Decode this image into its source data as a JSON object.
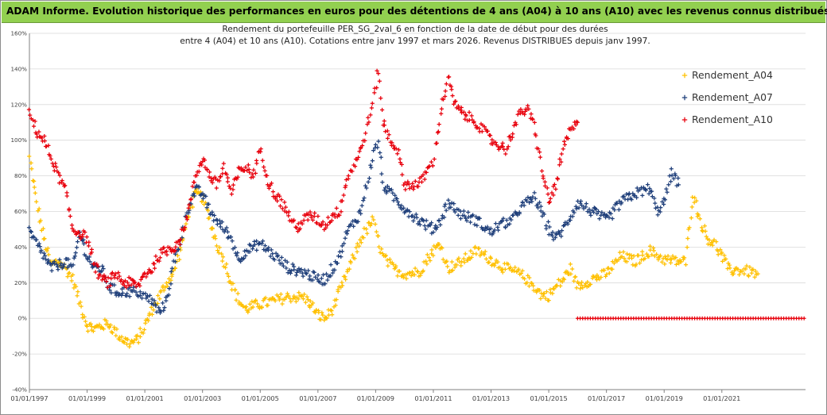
{
  "banner": {
    "title": "ADAM Informe. Evolution historique des performances en euros pour des détentions de 4 ans (A04) à 10 ans (A10) avec les revenus connus distribués"
  },
  "colors": {
    "banner_bg": "#92d050",
    "A04": "#ffc000",
    "A07": "#1f3f7a",
    "A10": "#e8000c",
    "axis": "#808080"
  },
  "chart_data": {
    "type": "scatter",
    "title_lines": [
      "Rendement du portefeuille PER_SG_2val_6 en fonction de la date de début pour des durées",
      "entre 4 (A04) et 10 ans (A10). Cotations entre janv 1997 et mars 2026. Revenus DISTRIBUES depuis janv 1997."
    ],
    "xlabel": "",
    "ylabel": "",
    "x_range": [
      1997.0,
      2023.9
    ],
    "ylim": [
      -40,
      160
    ],
    "y_ticks": [
      -40,
      -20,
      0,
      20,
      40,
      60,
      80,
      100,
      120,
      140,
      160
    ],
    "y_tick_labels": [
      "-40%",
      "-20%",
      "0%",
      "20%",
      "40%",
      "60%",
      "80%",
      "100%",
      "120%",
      "140%",
      "160%"
    ],
    "x_ticks": [
      1997,
      1999,
      2001,
      2003,
      2005,
      2007,
      2009,
      2011,
      2013,
      2015,
      2017,
      2019,
      2021
    ],
    "x_tick_labels": [
      "01/01/1997",
      "01/01/1999",
      "01/01/2001",
      "01/01/2003",
      "01/01/2005",
      "01/01/2007",
      "01/01/2009",
      "01/01/2011",
      "01/01/2013",
      "01/01/2015",
      "01/01/2017",
      "01/01/2019",
      "01/01/2021"
    ],
    "legend_position": "right",
    "marker": "+",
    "series": [
      {
        "name": "Rendement_A04",
        "color": "#ffc000",
        "points": [
          [
            1997.0,
            90
          ],
          [
            1997.25,
            65
          ],
          [
            1997.5,
            45
          ],
          [
            1997.75,
            30
          ],
          [
            1998.0,
            32
          ],
          [
            1998.25,
            28
          ],
          [
            1998.5,
            22
          ],
          [
            1998.75,
            8
          ],
          [
            1999.0,
            -4
          ],
          [
            1999.25,
            -6
          ],
          [
            1999.5,
            -4
          ],
          [
            1999.75,
            -3
          ],
          [
            2000.0,
            -8
          ],
          [
            2000.25,
            -12
          ],
          [
            2000.5,
            -14
          ],
          [
            2000.75,
            -12
          ],
          [
            2001.0,
            -4
          ],
          [
            2001.25,
            5
          ],
          [
            2001.5,
            12
          ],
          [
            2001.75,
            20
          ],
          [
            2002.0,
            25
          ],
          [
            2002.25,
            40
          ],
          [
            2002.5,
            58
          ],
          [
            2002.75,
            70
          ],
          [
            2003.0,
            68
          ],
          [
            2003.25,
            55
          ],
          [
            2003.5,
            42
          ],
          [
            2003.75,
            32
          ],
          [
            2004.0,
            20
          ],
          [
            2004.25,
            10
          ],
          [
            2004.5,
            5
          ],
          [
            2004.75,
            7
          ],
          [
            2005.0,
            8
          ],
          [
            2005.5,
            10
          ],
          [
            2006.0,
            12
          ],
          [
            2006.5,
            12
          ],
          [
            2006.75,
            8
          ],
          [
            2007.0,
            2
          ],
          [
            2007.25,
            0
          ],
          [
            2007.5,
            5
          ],
          [
            2007.75,
            15
          ],
          [
            2008.0,
            25
          ],
          [
            2008.5,
            45
          ],
          [
            2008.9,
            55
          ],
          [
            2009.25,
            35
          ],
          [
            2009.6,
            28
          ],
          [
            2010.0,
            25
          ],
          [
            2010.5,
            26
          ],
          [
            2011.0,
            38
          ],
          [
            2011.25,
            42
          ],
          [
            2011.5,
            28
          ],
          [
            2012.0,
            32
          ],
          [
            2012.5,
            38
          ],
          [
            2013.0,
            33
          ],
          [
            2013.5,
            28
          ],
          [
            2014.0,
            25
          ],
          [
            2014.5,
            18
          ],
          [
            2014.75,
            13
          ],
          [
            2015.0,
            13
          ],
          [
            2015.5,
            22
          ],
          [
            2015.75,
            28
          ],
          [
            2016.0,
            18
          ],
          [
            2016.5,
            22
          ],
          [
            2017.0,
            25
          ],
          [
            2017.5,
            35
          ],
          [
            2018.0,
            32
          ],
          [
            2018.5,
            38
          ],
          [
            2019.0,
            33
          ],
          [
            2019.5,
            32
          ],
          [
            2019.75,
            32
          ],
          [
            2020.0,
            70
          ],
          [
            2020.25,
            55
          ],
          [
            2020.5,
            45
          ],
          [
            2020.75,
            42
          ],
          [
            2021.0,
            35
          ],
          [
            2021.25,
            27
          ],
          [
            2021.75,
            27
          ],
          [
            2022.25,
            25
          ]
        ]
      },
      {
        "name": "Rendement_A07",
        "color": "#1f3f7a",
        "points": [
          [
            1997.0,
            48
          ],
          [
            1997.25,
            42
          ],
          [
            1997.5,
            35
          ],
          [
            1997.75,
            28
          ],
          [
            1998.0,
            30
          ],
          [
            1998.25,
            32
          ],
          [
            1998.5,
            28
          ],
          [
            1998.75,
            48
          ],
          [
            1999.0,
            35
          ],
          [
            1999.25,
            28
          ],
          [
            1999.5,
            28
          ],
          [
            1999.75,
            18
          ],
          [
            2000.0,
            15
          ],
          [
            2000.25,
            15
          ],
          [
            2000.5,
            15
          ],
          [
            2000.75,
            15
          ],
          [
            2001.0,
            12
          ],
          [
            2001.25,
            10
          ],
          [
            2001.5,
            3
          ],
          [
            2001.75,
            10
          ],
          [
            2002.0,
            30
          ],
          [
            2002.25,
            45
          ],
          [
            2002.5,
            62
          ],
          [
            2002.75,
            72
          ],
          [
            2003.0,
            70
          ],
          [
            2003.25,
            60
          ],
          [
            2003.5,
            55
          ],
          [
            2003.75,
            50
          ],
          [
            2004.0,
            45
          ],
          [
            2004.25,
            33
          ],
          [
            2004.5,
            38
          ],
          [
            2004.75,
            40
          ],
          [
            2005.0,
            42
          ],
          [
            2005.5,
            35
          ],
          [
            2006.0,
            28
          ],
          [
            2006.5,
            26
          ],
          [
            2007.0,
            22
          ],
          [
            2007.25,
            22
          ],
          [
            2007.5,
            28
          ],
          [
            2007.75,
            35
          ],
          [
            2008.0,
            48
          ],
          [
            2008.5,
            60
          ],
          [
            2008.9,
            90
          ],
          [
            2009.1,
            100
          ],
          [
            2009.25,
            75
          ],
          [
            2009.5,
            70
          ],
          [
            2010.0,
            62
          ],
          [
            2010.5,
            55
          ],
          [
            2011.0,
            50
          ],
          [
            2011.25,
            55
          ],
          [
            2011.5,
            65
          ],
          [
            2012.0,
            58
          ],
          [
            2012.5,
            55
          ],
          [
            2013.0,
            48
          ],
          [
            2013.25,
            52
          ],
          [
            2013.75,
            55
          ],
          [
            2014.0,
            62
          ],
          [
            2014.5,
            68
          ],
          [
            2014.75,
            60
          ],
          [
            2015.0,
            50
          ],
          [
            2015.25,
            45
          ],
          [
            2015.5,
            50
          ],
          [
            2016.0,
            65
          ],
          [
            2016.5,
            60
          ],
          [
            2017.0,
            55
          ],
          [
            2017.5,
            65
          ],
          [
            2018.0,
            70
          ],
          [
            2018.5,
            73
          ],
          [
            2018.75,
            60
          ],
          [
            2019.0,
            65
          ],
          [
            2019.25,
            82
          ],
          [
            2019.5,
            75
          ]
        ]
      },
      {
        "name": "Rendement_A10",
        "color": "#e8000c",
        "points": [
          [
            1997.0,
            115
          ],
          [
            1997.25,
            105
          ],
          [
            1997.5,
            100
          ],
          [
            1997.75,
            90
          ],
          [
            1998.0,
            80
          ],
          [
            1998.25,
            72
          ],
          [
            1998.5,
            50
          ],
          [
            1998.75,
            48
          ],
          [
            1999.0,
            45
          ],
          [
            1999.25,
            30
          ],
          [
            1999.5,
            22
          ],
          [
            1999.75,
            20
          ],
          [
            2000.0,
            25
          ],
          [
            2000.25,
            20
          ],
          [
            2000.5,
            20
          ],
          [
            2000.75,
            18
          ],
          [
            2001.0,
            25
          ],
          [
            2001.25,
            28
          ],
          [
            2001.5,
            35
          ],
          [
            2001.75,
            38
          ],
          [
            2002.0,
            40
          ],
          [
            2002.25,
            45
          ],
          [
            2002.5,
            60
          ],
          [
            2002.75,
            80
          ],
          [
            2003.0,
            90
          ],
          [
            2003.25,
            80
          ],
          [
            2003.5,
            75
          ],
          [
            2003.75,
            85
          ],
          [
            2004.0,
            70
          ],
          [
            2004.25,
            82
          ],
          [
            2004.5,
            85
          ],
          [
            2004.75,
            80
          ],
          [
            2005.0,
            95
          ],
          [
            2005.25,
            78
          ],
          [
            2005.5,
            70
          ],
          [
            2005.75,
            65
          ],
          [
            2006.0,
            58
          ],
          [
            2006.25,
            50
          ],
          [
            2006.5,
            55
          ],
          [
            2006.75,
            58
          ],
          [
            2007.0,
            55
          ],
          [
            2007.25,
            52
          ],
          [
            2007.5,
            58
          ],
          [
            2007.75,
            60
          ],
          [
            2008.0,
            78
          ],
          [
            2008.5,
            95
          ],
          [
            2008.9,
            120
          ],
          [
            2009.1,
            140
          ],
          [
            2009.25,
            110
          ],
          [
            2009.5,
            100
          ],
          [
            2009.75,
            95
          ],
          [
            2010.0,
            75
          ],
          [
            2010.5,
            75
          ],
          [
            2011.0,
            88
          ],
          [
            2011.25,
            115
          ],
          [
            2011.5,
            135
          ],
          [
            2011.75,
            120
          ],
          [
            2012.0,
            115
          ],
          [
            2012.5,
            110
          ],
          [
            2013.0,
            100
          ],
          [
            2013.5,
            95
          ],
          [
            2014.0,
            115
          ],
          [
            2014.25,
            118
          ],
          [
            2014.5,
            108
          ],
          [
            2014.75,
            85
          ],
          [
            2015.0,
            65
          ],
          [
            2015.25,
            75
          ],
          [
            2015.5,
            95
          ],
          [
            2015.75,
            105
          ],
          [
            2016.0,
            110
          ]
        ]
      },
      {
        "name": "Rendement_A10 (zero band)",
        "color": "#e8000c",
        "legend": false,
        "points": [
          [
            2016.0,
            0
          ],
          [
            2023.9,
            0
          ]
        ]
      }
    ]
  }
}
